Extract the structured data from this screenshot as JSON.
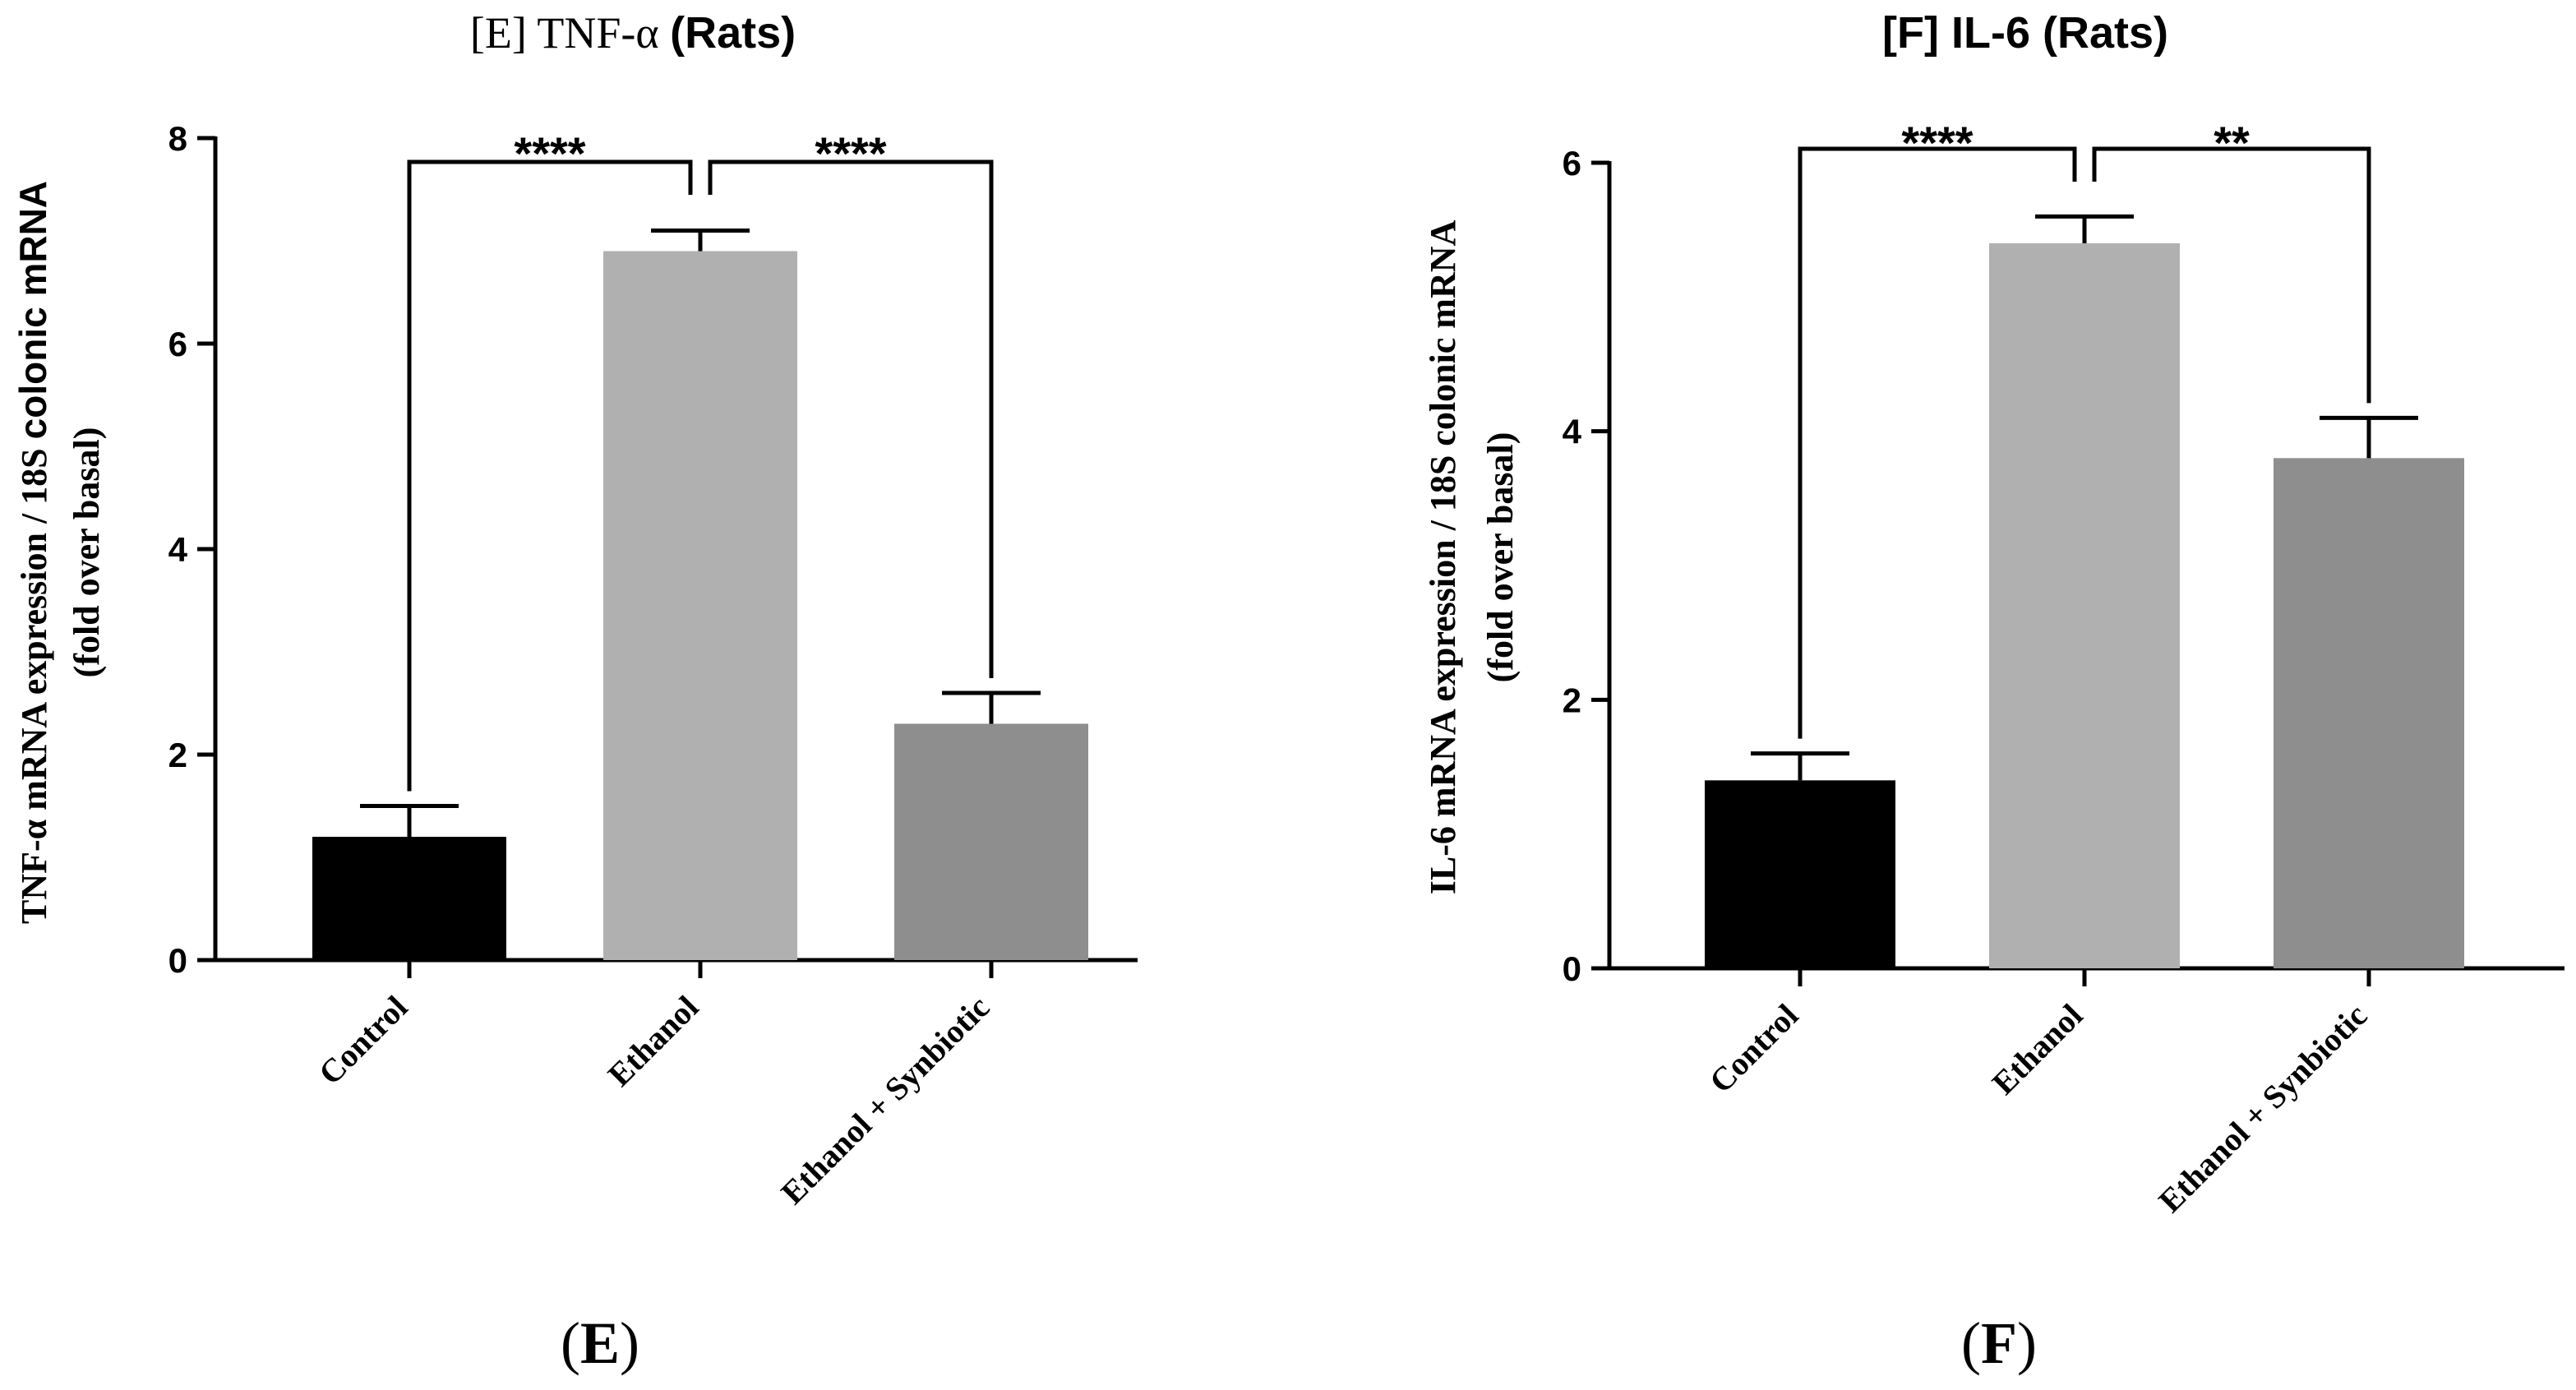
{
  "chart_data": [
    {
      "type": "bar",
      "panel": "E",
      "panel_label_letter": "E",
      "title": "[E] TNF-α (Rats)",
      "title_parts": [
        "[E] TNF-α ",
        "(Rats)"
      ],
      "ylabel_line1_parts": [
        "TNF-α mRNA expression / 18S ",
        "colonic mRNA"
      ],
      "ylabel_line2": "(fold over basal)",
      "ylim": [
        0,
        8
      ],
      "yticks": [
        0,
        2,
        4,
        6,
        8
      ],
      "categories": [
        "Control",
        "Ethanol",
        "Ethanol + Synbiotic"
      ],
      "values": [
        1.2,
        6.9,
        2.3
      ],
      "errors": [
        0.3,
        0.2,
        0.3
      ],
      "colors": [
        "#000000",
        "#b0b0b0",
        "#8e8e8e"
      ],
      "significance": [
        {
          "from": 0,
          "to": 1,
          "label": "****"
        },
        {
          "from": 1,
          "to": 2,
          "label": "****"
        }
      ]
    },
    {
      "type": "bar",
      "panel": "F",
      "panel_label_letter": "F",
      "title": "[F] IL-6 (Rats)",
      "title_parts": [
        "[F] IL-6 (Rats)"
      ],
      "ylabel_line1_parts": [
        "IL-6 mRNA expression / 18S colonic mRNA"
      ],
      "ylabel_line2": "(fold over basal)",
      "ylim": [
        0,
        6
      ],
      "yticks": [
        0,
        2,
        4,
        6
      ],
      "categories": [
        "Control",
        "Ethanol",
        "Ethanol + Synbiotic"
      ],
      "values": [
        1.4,
        5.4,
        3.8
      ],
      "errors": [
        0.2,
        0.2,
        0.3
      ],
      "colors": [
        "#000000",
        "#b0b0b0",
        "#8e8e8e"
      ],
      "significance": [
        {
          "from": 0,
          "to": 1,
          "label": "****"
        },
        {
          "from": 1,
          "to": 2,
          "label": "**"
        }
      ]
    }
  ]
}
